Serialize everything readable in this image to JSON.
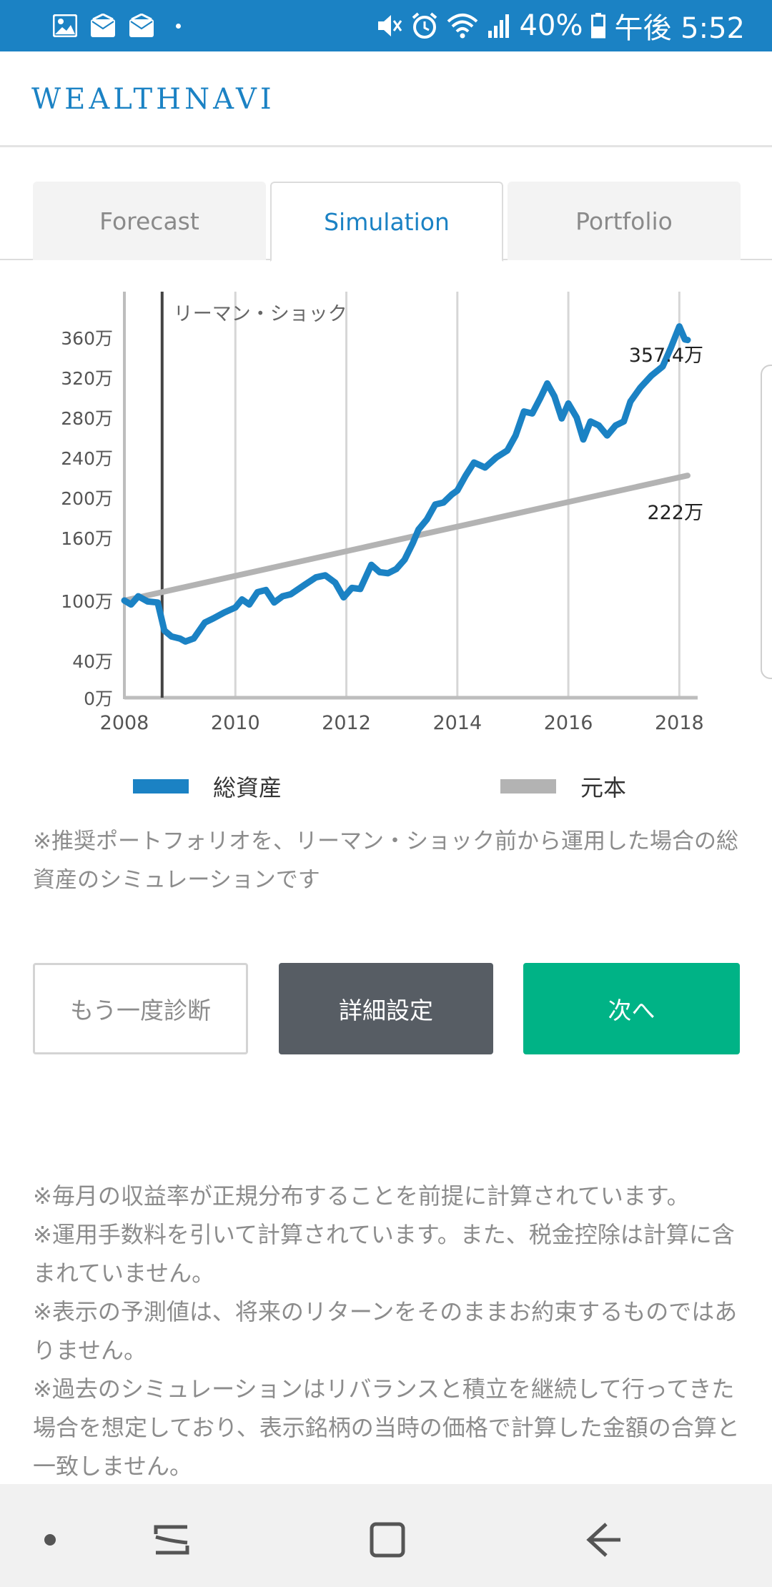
{
  "status_bar": {
    "battery": "40%",
    "time": "午後 5:52",
    "left_icons": [
      "gallery-icon",
      "mail-icon",
      "mail-icon",
      "dot-icon"
    ],
    "right_icons": [
      "mute-icon",
      "alarm-icon",
      "wifi-icon",
      "signal-icon",
      "battery-icon"
    ]
  },
  "header": {
    "logo": "WEALTHNAVI"
  },
  "tabs": [
    {
      "label": "Forecast",
      "active": false
    },
    {
      "label": "Simulation",
      "active": true
    },
    {
      "label": "Portfolio",
      "active": false
    }
  ],
  "chart_data": {
    "type": "line",
    "x_ticks": [
      "2008",
      "2010",
      "2012",
      "2014",
      "2016",
      "2018"
    ],
    "y_ticks": [
      {
        "value": 0,
        "label": "0万"
      },
      {
        "value": 40,
        "label": "40万"
      },
      {
        "value": 100,
        "label": "100万"
      },
      {
        "value": 160,
        "label": "160万"
      },
      {
        "value": 200,
        "label": "200万"
      },
      {
        "value": 240,
        "label": "240万"
      },
      {
        "value": 280,
        "label": "280万"
      },
      {
        "value": 320,
        "label": "320万"
      },
      {
        "value": 360,
        "label": "360万"
      }
    ],
    "xlim": [
      2008,
      2018.15
    ],
    "grid": "vertical",
    "annotation": {
      "x": 2008.68,
      "label": "リーマン・ショック"
    },
    "series": [
      {
        "name": "総資産",
        "color": "#1b82c4",
        "end_label": "357.4万",
        "points": [
          [
            2008.0,
            100
          ],
          [
            2008.12,
            96
          ],
          [
            2008.25,
            104
          ],
          [
            2008.42,
            99
          ],
          [
            2008.6,
            98
          ],
          [
            2008.72,
            70
          ],
          [
            2008.85,
            64
          ],
          [
            2009.0,
            62
          ],
          [
            2009.1,
            59
          ],
          [
            2009.25,
            62
          ],
          [
            2009.45,
            78
          ],
          [
            2009.6,
            82
          ],
          [
            2009.8,
            88
          ],
          [
            2010.0,
            93
          ],
          [
            2010.12,
            101
          ],
          [
            2010.25,
            96
          ],
          [
            2010.4,
            108
          ],
          [
            2010.55,
            110
          ],
          [
            2010.7,
            98
          ],
          [
            2010.85,
            104
          ],
          [
            2011.0,
            106
          ],
          [
            2011.25,
            115
          ],
          [
            2011.45,
            122
          ],
          [
            2011.62,
            124
          ],
          [
            2011.8,
            117
          ],
          [
            2011.95,
            103
          ],
          [
            2012.1,
            112
          ],
          [
            2012.25,
            111
          ],
          [
            2012.45,
            134
          ],
          [
            2012.6,
            127
          ],
          [
            2012.75,
            126
          ],
          [
            2012.9,
            130
          ],
          [
            2013.05,
            139
          ],
          [
            2013.2,
            155
          ],
          [
            2013.3,
            168
          ],
          [
            2013.45,
            178
          ],
          [
            2013.6,
            193
          ],
          [
            2013.75,
            195
          ],
          [
            2013.9,
            203
          ],
          [
            2014.0,
            207
          ],
          [
            2014.15,
            222
          ],
          [
            2014.3,
            235
          ],
          [
            2014.5,
            230
          ],
          [
            2014.7,
            240
          ],
          [
            2014.9,
            247
          ],
          [
            2015.05,
            262
          ],
          [
            2015.2,
            286
          ],
          [
            2015.35,
            284
          ],
          [
            2015.5,
            300
          ],
          [
            2015.62,
            314
          ],
          [
            2015.75,
            301
          ],
          [
            2015.88,
            279
          ],
          [
            2016.0,
            294
          ],
          [
            2016.15,
            280
          ],
          [
            2016.27,
            258
          ],
          [
            2016.4,
            276
          ],
          [
            2016.55,
            272
          ],
          [
            2016.7,
            262
          ],
          [
            2016.85,
            272
          ],
          [
            2017.0,
            276
          ],
          [
            2017.12,
            296
          ],
          [
            2017.3,
            310
          ],
          [
            2017.5,
            322
          ],
          [
            2017.7,
            331
          ],
          [
            2017.85,
            350
          ],
          [
            2018.0,
            371
          ],
          [
            2018.1,
            358
          ],
          [
            2018.15,
            357.4
          ]
        ]
      },
      {
        "name": "元本",
        "color": "#b3b3b3",
        "end_label": "222万",
        "points": [
          [
            2008.0,
            100
          ],
          [
            2018.15,
            222
          ]
        ]
      }
    ]
  },
  "legend": [
    {
      "label": "総資産",
      "color": "#1b82c4"
    },
    {
      "label": "元本",
      "color": "#b3b3b3"
    }
  ],
  "note": "※推奨ポートフォリオを、リーマン・ショック前から運用した場合の総資産のシミュレーションです",
  "buttons": {
    "retry": "もう一度診断",
    "detail": "詳細設定",
    "next": "次へ"
  },
  "disclaimers": [
    "※毎月の収益率が正規分布することを前提に計算されています。",
    "※運用手数料を引いて計算されています。また、税金控除は計算に含まれていません。",
    "※表示の予測値は、将来のリターンをそのままお約束するものではありません。",
    "※過去のシミュレーションはリバランスと積立を継続して行ってきた場合を想定しており、表示銘柄の当時の価格で計算した金額の合算と一致しません。"
  ],
  "nav_bar": [
    "recent-dot-icon",
    "recents-icon",
    "home-icon",
    "back-icon"
  ]
}
